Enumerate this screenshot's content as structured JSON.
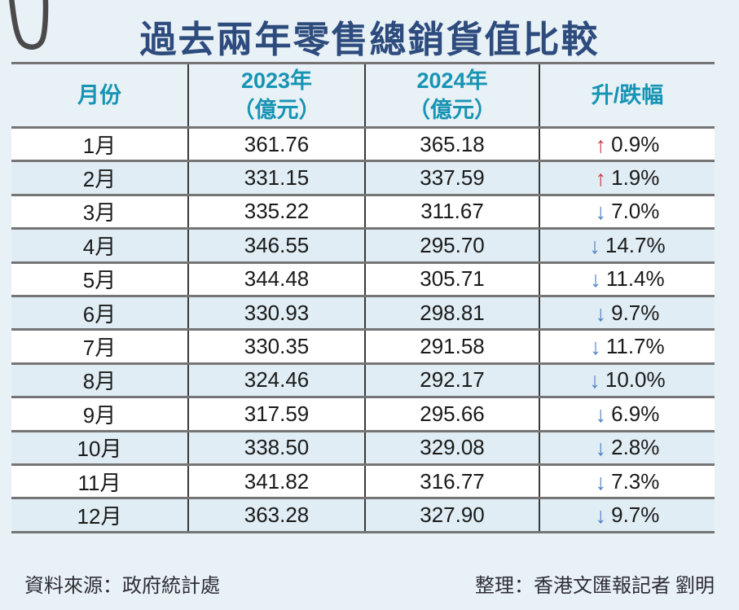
{
  "page": {
    "title": "過去兩年零售總銷貨值比較",
    "source": "資料來源：政府統計處",
    "credit": "整理：香港文匯報記者 劉明"
  },
  "icons": {
    "up_arrow": "↑",
    "down_arrow": "↓",
    "paperclip": "paperclip-icon"
  },
  "colors": {
    "background": "#e8f1f6",
    "row_alt": "#e0edf4",
    "title": "#2d4b7d",
    "header_text": "#1794b4",
    "up_arrow": "#c23b44",
    "down_arrow": "#4f80c2",
    "cell_text": "#1a1a1a",
    "line_horizontal": "#757575",
    "line_vertical": "#383838"
  },
  "table": {
    "headers": {
      "month": "月份",
      "y2023_year": "2023年",
      "y2023_unit": "（億元）",
      "y2024_year": "2024年",
      "y2024_unit": "（億元）",
      "change": "升/跌幅"
    },
    "rows": [
      {
        "month": "1月",
        "v2023": "361.76",
        "v2024": "365.18",
        "dir": "up",
        "change": "0.9%"
      },
      {
        "month": "2月",
        "v2023": "331.15",
        "v2024": "337.59",
        "dir": "up",
        "change": "1.9%"
      },
      {
        "month": "3月",
        "v2023": "335.22",
        "v2024": "311.67",
        "dir": "down",
        "change": "7.0%"
      },
      {
        "month": "4月",
        "v2023": "346.55",
        "v2024": "295.70",
        "dir": "down",
        "change": "14.7%"
      },
      {
        "month": "5月",
        "v2023": "344.48",
        "v2024": "305.71",
        "dir": "down",
        "change": "11.4%"
      },
      {
        "month": "6月",
        "v2023": "330.93",
        "v2024": "298.81",
        "dir": "down",
        "change": "9.7%"
      },
      {
        "month": "7月",
        "v2023": "330.35",
        "v2024": "291.58",
        "dir": "down",
        "change": "11.7%"
      },
      {
        "month": "8月",
        "v2023": "324.46",
        "v2024": "292.17",
        "dir": "down",
        "change": "10.0%"
      },
      {
        "month": "9月",
        "v2023": "317.59",
        "v2024": "295.66",
        "dir": "down",
        "change": "6.9%"
      },
      {
        "month": "10月",
        "v2023": "338.50",
        "v2024": "329.08",
        "dir": "down",
        "change": "2.8%"
      },
      {
        "month": "11月",
        "v2023": "341.82",
        "v2024": "316.77",
        "dir": "down",
        "change": "7.3%"
      },
      {
        "month": "12月",
        "v2023": "363.28",
        "v2024": "327.90",
        "dir": "down",
        "change": "9.7%"
      }
    ]
  },
  "chart_data": {
    "type": "table",
    "title": "過去兩年零售總銷貨值比較",
    "columns": [
      "月份",
      "2023年（億元）",
      "2024年（億元）",
      "升/跌幅"
    ],
    "rows": [
      [
        "1月",
        361.76,
        365.18,
        "+0.9%"
      ],
      [
        "2月",
        331.15,
        337.59,
        "+1.9%"
      ],
      [
        "3月",
        335.22,
        311.67,
        "-7.0%"
      ],
      [
        "4月",
        346.55,
        295.7,
        "-14.7%"
      ],
      [
        "5月",
        344.48,
        305.71,
        "-11.4%"
      ],
      [
        "6月",
        330.93,
        298.81,
        "-9.7%"
      ],
      [
        "7月",
        330.35,
        291.58,
        "-11.7%"
      ],
      [
        "8月",
        324.46,
        292.17,
        "-10.0%"
      ],
      [
        "9月",
        317.59,
        295.66,
        "-6.9%"
      ],
      [
        "10月",
        338.5,
        329.08,
        "-2.8%"
      ],
      [
        "11月",
        341.82,
        316.77,
        "-7.3%"
      ],
      [
        "12月",
        363.28,
        327.9,
        "-9.7%"
      ]
    ],
    "source": "政府統計處",
    "credit": "香港文匯報記者 劉明"
  }
}
